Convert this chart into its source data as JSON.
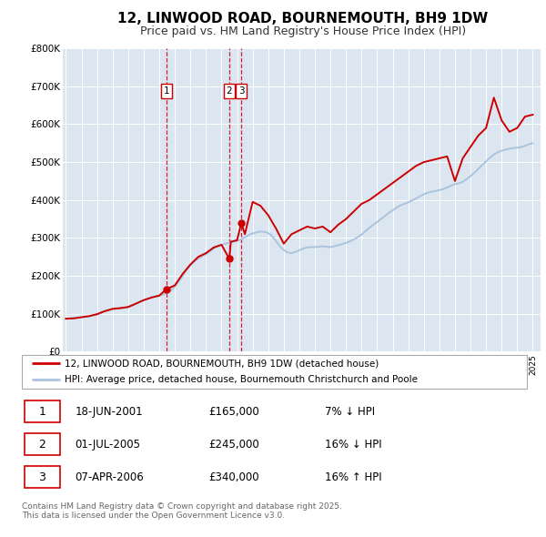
{
  "title": "12, LINWOOD ROAD, BOURNEMOUTH, BH9 1DW",
  "subtitle": "Price paid vs. HM Land Registry's House Price Index (HPI)",
  "title_fontsize": 11,
  "subtitle_fontsize": 9,
  "background_color": "#ffffff",
  "plot_bg_color": "#dce6f1",
  "grid_color": "#ffffff",
  "red_color": "#cc0000",
  "blue_color": "#aac4dd",
  "ylim": [
    0,
    800000
  ],
  "yticks": [
    0,
    100000,
    200000,
    300000,
    400000,
    500000,
    600000,
    700000,
    800000
  ],
  "ytick_labels": [
    "£0",
    "£100K",
    "£200K",
    "£300K",
    "£400K",
    "£500K",
    "£600K",
    "£700K",
    "£800K"
  ],
  "xmin": 1994.8,
  "xmax": 2025.5,
  "transactions": [
    {
      "label": "1",
      "date_num": 2001.46,
      "price": 165000
    },
    {
      "label": "2",
      "date_num": 2005.5,
      "price": 245000
    },
    {
      "label": "3",
      "date_num": 2006.27,
      "price": 340000
    }
  ],
  "legend_entries": [
    "12, LINWOOD ROAD, BOURNEMOUTH, BH9 1DW (detached house)",
    "HPI: Average price, detached house, Bournemouth Christchurch and Poole"
  ],
  "table_rows": [
    {
      "num": "1",
      "date": "18-JUN-2001",
      "price": "£165,000",
      "change": "7% ↓ HPI"
    },
    {
      "num": "2",
      "date": "01-JUL-2005",
      "price": "£245,000",
      "change": "16% ↓ HPI"
    },
    {
      "num": "3",
      "date": "07-APR-2006",
      "price": "£340,000",
      "change": "16% ↑ HPI"
    }
  ],
  "footer": "Contains HM Land Registry data © Crown copyright and database right 2025.\nThis data is licensed under the Open Government Licence v3.0.",
  "hpi_data": {
    "years": [
      1995.0,
      1995.25,
      1995.5,
      1995.75,
      1996.0,
      1996.25,
      1996.5,
      1996.75,
      1997.0,
      1997.25,
      1997.5,
      1997.75,
      1998.0,
      1998.25,
      1998.5,
      1998.75,
      1999.0,
      1999.25,
      1999.5,
      1999.75,
      2000.0,
      2000.25,
      2000.5,
      2000.75,
      2001.0,
      2001.25,
      2001.5,
      2001.75,
      2002.0,
      2002.25,
      2002.5,
      2002.75,
      2003.0,
      2003.25,
      2003.5,
      2003.75,
      2004.0,
      2004.25,
      2004.5,
      2004.75,
      2005.0,
      2005.25,
      2005.5,
      2005.75,
      2006.0,
      2006.25,
      2006.5,
      2006.75,
      2007.0,
      2007.25,
      2007.5,
      2007.75,
      2008.0,
      2008.25,
      2008.5,
      2008.75,
      2009.0,
      2009.25,
      2009.5,
      2009.75,
      2010.0,
      2010.25,
      2010.5,
      2010.75,
      2011.0,
      2011.25,
      2011.5,
      2011.75,
      2012.0,
      2012.25,
      2012.5,
      2012.75,
      2013.0,
      2013.25,
      2013.5,
      2013.75,
      2014.0,
      2014.25,
      2014.5,
      2014.75,
      2015.0,
      2015.25,
      2015.5,
      2015.75,
      2016.0,
      2016.25,
      2016.5,
      2016.75,
      2017.0,
      2017.25,
      2017.5,
      2017.75,
      2018.0,
      2018.25,
      2018.5,
      2018.75,
      2019.0,
      2019.25,
      2019.5,
      2019.75,
      2020.0,
      2020.25,
      2020.5,
      2020.75,
      2021.0,
      2021.25,
      2021.5,
      2021.75,
      2022.0,
      2022.25,
      2022.5,
      2022.75,
      2023.0,
      2023.25,
      2023.5,
      2023.75,
      2024.0,
      2024.25,
      2024.5,
      2024.75,
      2025.0
    ],
    "values": [
      87000,
      88000,
      89000,
      90000,
      91000,
      92000,
      93000,
      96000,
      99000,
      103000,
      107000,
      110000,
      113000,
      114000,
      115000,
      116000,
      118000,
      121000,
      126000,
      131000,
      136000,
      140000,
      143000,
      146000,
      148000,
      151000,
      155000,
      161000,
      172000,
      185000,
      200000,
      215000,
      228000,
      238000,
      246000,
      252000,
      257000,
      265000,
      272000,
      278000,
      282000,
      285000,
      288000,
      290000,
      292000,
      296000,
      302000,
      308000,
      312000,
      315000,
      317000,
      316000,
      313000,
      305000,
      292000,
      278000,
      268000,
      262000,
      260000,
      263000,
      268000,
      272000,
      275000,
      276000,
      276000,
      277000,
      278000,
      277000,
      276000,
      278000,
      281000,
      284000,
      287000,
      291000,
      296000,
      302000,
      309000,
      318000,
      327000,
      335000,
      342000,
      350000,
      358000,
      366000,
      373000,
      380000,
      386000,
      390000,
      394000,
      399000,
      404000,
      410000,
      415000,
      419000,
      422000,
      424000,
      426000,
      429000,
      433000,
      438000,
      442000,
      444000,
      448000,
      455000,
      463000,
      472000,
      482000,
      492000,
      502000,
      512000,
      520000,
      526000,
      530000,
      533000,
      535000,
      537000,
      538000,
      540000,
      543000,
      547000,
      550000
    ]
  },
  "price_data": {
    "years": [
      1995.0,
      1995.5,
      1996.0,
      1996.5,
      1997.0,
      1997.5,
      1998.0,
      1998.5,
      1999.0,
      1999.5,
      2000.0,
      2000.5,
      2001.0,
      2001.46,
      2002.0,
      2002.5,
      2003.0,
      2003.5,
      2004.0,
      2004.5,
      2005.0,
      2005.5,
      2005.6,
      2006.0,
      2006.27,
      2006.5,
      2007.0,
      2007.5,
      2008.0,
      2008.5,
      2009.0,
      2009.5,
      2010.0,
      2010.5,
      2011.0,
      2011.5,
      2012.0,
      2012.5,
      2013.0,
      2013.5,
      2014.0,
      2014.5,
      2015.0,
      2015.5,
      2016.0,
      2016.5,
      2017.0,
      2017.5,
      2018.0,
      2018.5,
      2019.0,
      2019.5,
      2020.0,
      2020.5,
      2021.0,
      2021.5,
      2022.0,
      2022.5,
      2022.75,
      2023.0,
      2023.5,
      2024.0,
      2024.5,
      2025.0
    ],
    "values": [
      87000,
      88000,
      91000,
      94000,
      99000,
      107000,
      113000,
      115000,
      118000,
      127000,
      136000,
      143000,
      148000,
      165000,
      175000,
      205000,
      230000,
      250000,
      260000,
      275000,
      282000,
      245000,
      290000,
      294000,
      340000,
      310000,
      395000,
      385000,
      360000,
      325000,
      285000,
      310000,
      320000,
      330000,
      325000,
      330000,
      315000,
      335000,
      350000,
      370000,
      390000,
      400000,
      415000,
      430000,
      445000,
      460000,
      475000,
      490000,
      500000,
      505000,
      510000,
      515000,
      450000,
      510000,
      540000,
      570000,
      590000,
      670000,
      640000,
      610000,
      580000,
      590000,
      620000,
      625000
    ]
  }
}
